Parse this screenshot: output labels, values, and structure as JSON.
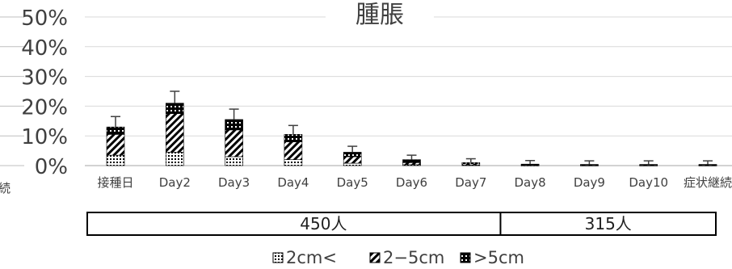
{
  "chart_data": {
    "type": "bar",
    "stacked": true,
    "title": "腫脹",
    "categories": [
      "接種日",
      "Day2",
      "Day3",
      "Day4",
      "Day5",
      "Day6",
      "Day7",
      "Day8",
      "Day9",
      "Day10",
      "症状継続"
    ],
    "y_tick_labels": [
      "0%",
      "10%",
      "20%",
      "30%",
      "40%",
      "50%"
    ],
    "ylim": [
      0,
      50
    ],
    "grid": true,
    "series": [
      {
        "name": "2cm<",
        "pattern": "dots",
        "values": [
          3.5,
          4.5,
          3.0,
          2.0,
          0.8,
          0.3,
          0.2,
          0.1,
          0.1,
          0.1,
          0.1
        ]
      },
      {
        "name": "2−5cm",
        "pattern": "diagonal",
        "values": [
          7.0,
          13.0,
          9.0,
          6.0,
          2.2,
          0.7,
          0.4,
          0.2,
          0.1,
          0.1,
          0.1
        ]
      },
      {
        "name": ">5cm",
        "pattern": "dark-dots",
        "values": [
          2.5,
          3.5,
          3.5,
          2.5,
          1.5,
          1.0,
          0.4,
          0.2,
          0.2,
          0.2,
          0.2
        ]
      }
    ],
    "error_upper": [
      3.5,
      4.0,
      3.5,
      3.0,
      2.0,
      1.5,
      1.3,
      1.2,
      1.2,
      1.2,
      1.2
    ],
    "legend": {
      "position": "bottom"
    },
    "left_edge_label": "続",
    "sample_sizes": [
      {
        "label": "450人",
        "from_category": 0,
        "to_category": 7
      },
      {
        "label": "315人",
        "from_category": 7,
        "to_category": 10
      }
    ]
  }
}
